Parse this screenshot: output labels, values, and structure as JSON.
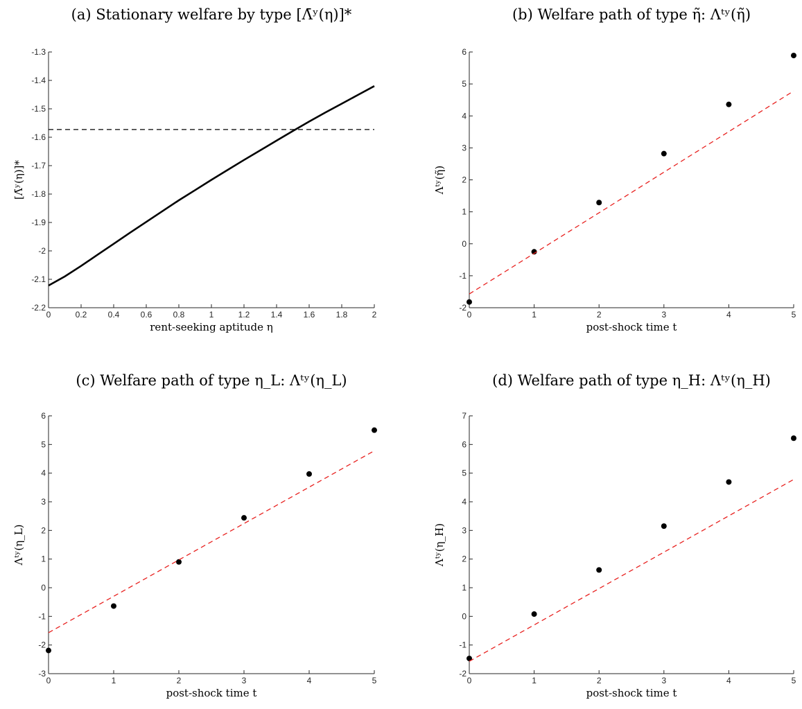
{
  "chart_data": [
    {
      "id": "a",
      "type": "line",
      "title": "(a) Stationary welfare by type [Λ̄ʸ(η)]*",
      "xlabel": "rent-seeking aptitude η",
      "ylabel": "[Λ̄ʸ(η)]*",
      "xlim": [
        0,
        2
      ],
      "ylim": [
        -2.2,
        -1.3
      ],
      "xticks": [
        0,
        0.2,
        0.4,
        0.6,
        0.8,
        1,
        1.2,
        1.4,
        1.6,
        1.8,
        2
      ],
      "xtick_labels": [
        "0",
        "0.2",
        "0.4",
        "0.6",
        "0.8",
        "1",
        "1.2",
        "1.4",
        "1.6",
        "1.8",
        "2"
      ],
      "yticks": [
        -2.2,
        -2.1,
        -2,
        -1.9,
        -1.8,
        -1.7,
        -1.6,
        -1.5,
        -1.4,
        -1.3
      ],
      "ytick_labels": [
        "-2.2",
        "-2.1",
        "-2",
        "-1.9",
        "-1.8",
        "-1.7",
        "-1.6",
        "-1.5",
        "-1.4",
        "-1.3"
      ],
      "series": [
        {
          "style": "solid",
          "color": "#000000",
          "x": [
            0,
            0.1,
            0.2,
            0.3,
            0.4,
            0.5,
            0.6,
            0.7,
            0.8,
            0.9,
            1.0,
            1.1,
            1.2,
            1.3,
            1.4,
            1.5,
            1.6,
            1.7,
            1.8,
            1.9,
            2.0
          ],
          "y": [
            -2.122,
            -2.09,
            -2.053,
            -2.014,
            -1.975,
            -1.936,
            -1.898,
            -1.86,
            -1.822,
            -1.786,
            -1.75,
            -1.715,
            -1.68,
            -1.646,
            -1.612,
            -1.578,
            -1.545,
            -1.513,
            -1.482,
            -1.451,
            -1.42
          ]
        },
        {
          "style": "dashed",
          "color": "#000000",
          "x": [
            0,
            2
          ],
          "y": [
            -1.573,
            -1.573
          ]
        }
      ]
    },
    {
      "id": "b",
      "type": "scatter",
      "title": "(b) Welfare path of type η̃: Λᵗʸ(η̃)",
      "xlabel": "post-shock time t",
      "ylabel": "Λᵗʸ(η̃)",
      "xlim": [
        0,
        5
      ],
      "ylim": [
        -2,
        6
      ],
      "xticks": [
        0,
        1,
        2,
        3,
        4,
        5
      ],
      "xtick_labels": [
        "0",
        "1",
        "2",
        "3",
        "4",
        "5"
      ],
      "yticks": [
        -2,
        -1,
        0,
        1,
        2,
        3,
        4,
        5,
        6
      ],
      "ytick_labels": [
        "-2",
        "-1",
        "0",
        "1",
        "2",
        "3",
        "4",
        "5",
        "6"
      ],
      "series": [
        {
          "style": "markers",
          "color": "#000000",
          "x": [
            0,
            1,
            2,
            3,
            4,
            5
          ],
          "y": [
            -1.82,
            -0.25,
            1.29,
            2.82,
            4.36,
            5.89
          ]
        },
        {
          "style": "dashed",
          "color": "#e8211f",
          "x": [
            0,
            5
          ],
          "y": [
            -1.57,
            4.78
          ]
        }
      ]
    },
    {
      "id": "c",
      "type": "scatter",
      "title": "(c) Welfare path of type η_L: Λᵗʸ(η_L)",
      "xlabel": "post-shock time t",
      "ylabel": "Λᵗʸ(η_L)",
      "xlim": [
        0,
        5
      ],
      "ylim": [
        -3,
        6
      ],
      "xticks": [
        0,
        1,
        2,
        3,
        4,
        5
      ],
      "xtick_labels": [
        "0",
        "1",
        "2",
        "3",
        "4",
        "5"
      ],
      "yticks": [
        -3,
        -2,
        -1,
        0,
        1,
        2,
        3,
        4,
        5,
        6
      ],
      "ytick_labels": [
        "-3",
        "-2",
        "-1",
        "0",
        "1",
        "2",
        "3",
        "4",
        "5",
        "6"
      ],
      "series": [
        {
          "style": "markers",
          "color": "#000000",
          "x": [
            0,
            1,
            2,
            3,
            4,
            5
          ],
          "y": [
            -2.19,
            -0.64,
            0.9,
            2.44,
            3.97,
            5.5
          ]
        },
        {
          "style": "dashed",
          "color": "#e8211f",
          "x": [
            0,
            5
          ],
          "y": [
            -1.57,
            4.78
          ]
        }
      ]
    },
    {
      "id": "d",
      "type": "scatter",
      "title": "(d) Welfare path of type η_H: Λᵗʸ(η_H)",
      "xlabel": "post-shock time t",
      "ylabel": "Λᵗʸ(η_H)",
      "xlim": [
        0,
        5
      ],
      "ylim": [
        -2,
        7
      ],
      "xticks": [
        0,
        1,
        2,
        3,
        4,
        5
      ],
      "xtick_labels": [
        "0",
        "1",
        "2",
        "3",
        "4",
        "5"
      ],
      "yticks": [
        -2,
        -1,
        0,
        1,
        2,
        3,
        4,
        5,
        6,
        7
      ],
      "ytick_labels": [
        "-2",
        "-1",
        "0",
        "1",
        "2",
        "3",
        "4",
        "5",
        "6",
        "7"
      ],
      "series": [
        {
          "style": "markers",
          "color": "#000000",
          "x": [
            0,
            1,
            2,
            3,
            4,
            5
          ],
          "y": [
            -1.47,
            0.08,
            1.62,
            3.15,
            4.69,
            6.22
          ]
        },
        {
          "style": "dashed",
          "color": "#e8211f",
          "x": [
            0,
            5
          ],
          "y": [
            -1.57,
            4.78
          ]
        }
      ]
    }
  ]
}
